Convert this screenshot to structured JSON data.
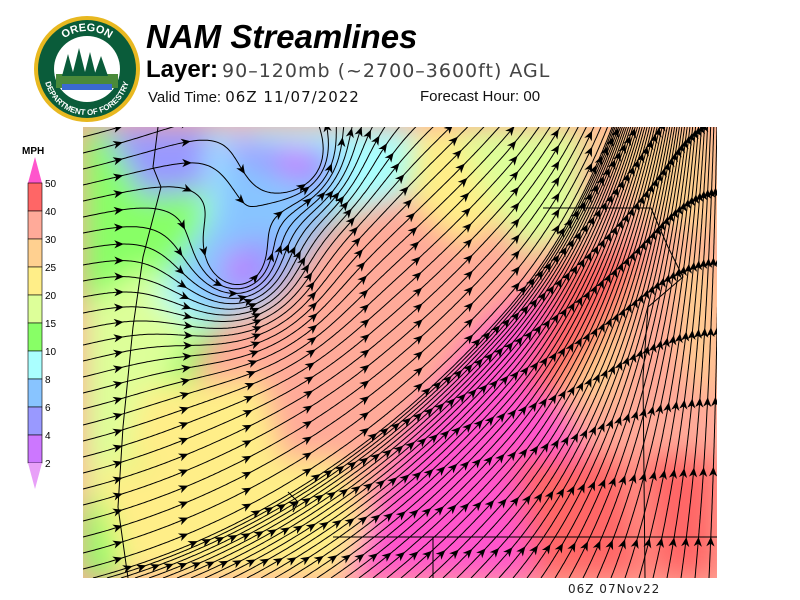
{
  "logo": {
    "top_text": "OREGON",
    "bottom_text": "DEPARTMENT OF FORESTRY"
  },
  "header": {
    "title": "NAM Streamlines",
    "layer_label": "Layer:",
    "layer_value": "90–120mb (~2700–3600ft) AGL",
    "valid_label": "Valid Time:",
    "valid_value": "06Z 11/07/2022",
    "forecast_label": "Forecast Hour:",
    "forecast_value": "00"
  },
  "legend": {
    "unit": "MPH",
    "ticks": [
      "50",
      "40",
      "30",
      "25",
      "20",
      "15",
      "10",
      "8",
      "6",
      "4",
      "2"
    ],
    "colors": [
      "#ff55cc",
      "#ff6666",
      "#ffaa99",
      "#ffd090",
      "#ffee88",
      "#ddff99",
      "#88ff66",
      "#aaffff",
      "#88c4ff",
      "#9999ff",
      "#cc77ff",
      "#e8a0f8"
    ]
  },
  "footer": {
    "stamp": "06Z 07Nov22"
  }
}
